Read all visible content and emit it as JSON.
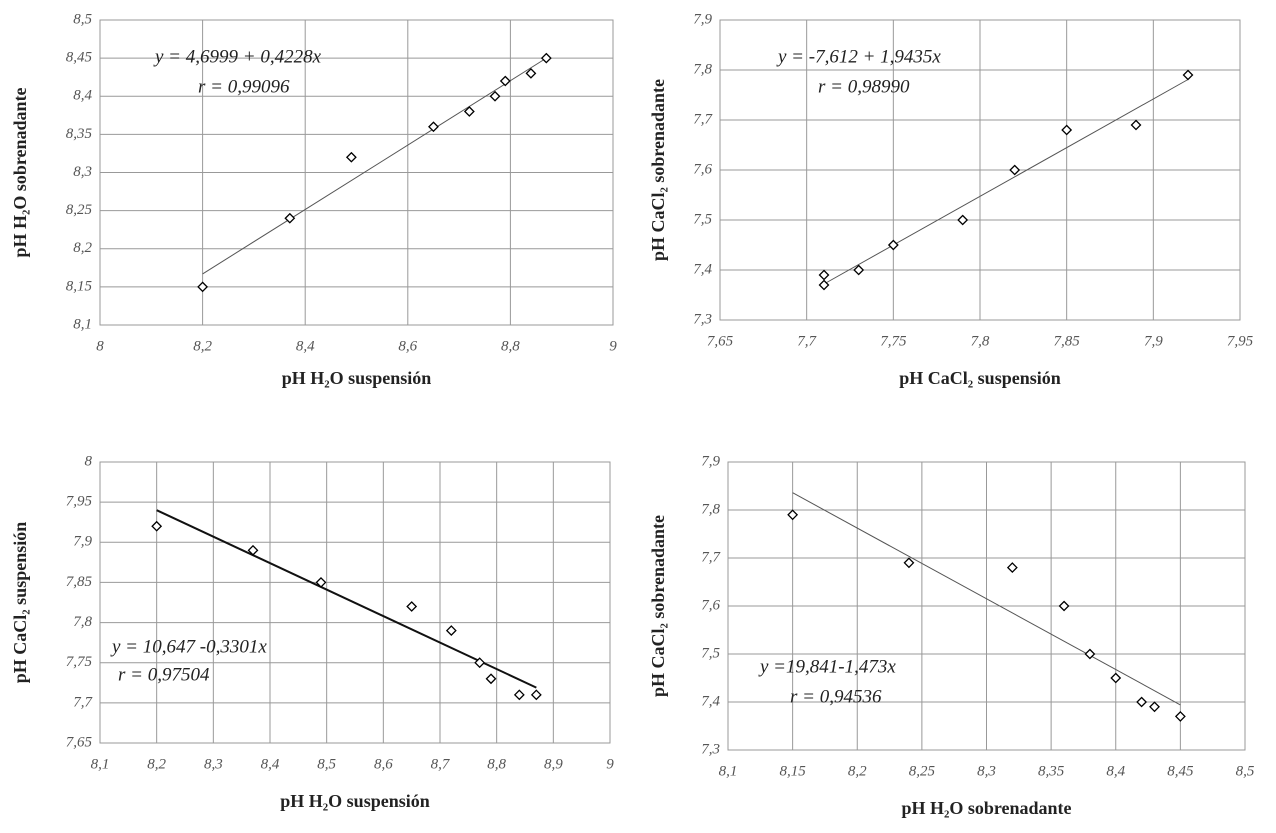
{
  "chart_data": [
    {
      "type": "scatter",
      "x_label": "pH H₂O suspensión",
      "y_label": "pH H₂O sobrenadante",
      "annotations": [
        "y = 4,6999 + 0,4228x",
        "r = 0,99096"
      ],
      "x": [
        8.2,
        8.37,
        8.49,
        8.65,
        8.72,
        8.77,
        8.79,
        8.84,
        8.87
      ],
      "values": [
        8.15,
        8.24,
        8.32,
        8.36,
        8.38,
        8.4,
        8.42,
        8.43,
        8.45
      ],
      "color": "#000000",
      "trendline": {
        "x": [
          8.2,
          8.87
        ],
        "y": [
          8.167,
          8.45
        ],
        "color": "#555555"
      },
      "xlim": [
        8,
        9
      ],
      "xticks": [
        8,
        {
          "value": 8.2,
          "label": "8,2"
        },
        {
          "value": 8.4,
          "label": "8,4"
        },
        {
          "value": 8.6,
          "label": "8,6"
        },
        {
          "value": 8.8,
          "label": "8,8"
        },
        9
      ],
      "ylim": [
        8.1,
        8.5
      ],
      "yticks": [
        {
          "value": 8.1,
          "label": "8,1"
        },
        {
          "value": 8.15,
          "label": "8,15"
        },
        {
          "value": 8.2,
          "label": "8,2"
        },
        {
          "value": 8.25,
          "label": "8,25"
        },
        {
          "value": 8.3,
          "label": "8,3"
        },
        {
          "value": 8.35,
          "label": "8,35"
        },
        {
          "value": 8.4,
          "label": "8,4"
        },
        {
          "value": 8.45,
          "label": "8,45"
        },
        {
          "value": 8.5,
          "label": "8,5"
        }
      ],
      "grid": true
    },
    {
      "type": "scatter",
      "x_label": "pH CaCl₂ suspensión",
      "y_label": "pH CaCl₂ sobrenadante",
      "annotations": [
        "y = -7,612 + 1,9435x",
        "r = 0,98990"
      ],
      "x": [
        7.71,
        7.71,
        7.73,
        7.75,
        7.79,
        7.82,
        7.85,
        7.89,
        7.92
      ],
      "values": [
        7.39,
        7.37,
        7.4,
        7.45,
        7.5,
        7.6,
        7.68,
        7.69,
        7.79
      ],
      "color": "#000000",
      "trendline": {
        "x": [
          7.71,
          7.92
        ],
        "y": [
          7.372,
          7.781
        ],
        "color": "#555555"
      },
      "xlim": [
        7.65,
        7.95
      ],
      "xticks": [
        {
          "value": 7.65,
          "label": "7,65"
        },
        {
          "value": 7.7,
          "label": "7,7"
        },
        {
          "value": 7.75,
          "label": "7,75"
        },
        {
          "value": 7.8,
          "label": "7,8"
        },
        {
          "value": 7.85,
          "label": "7,85"
        },
        {
          "value": 7.9,
          "label": "7,9"
        },
        {
          "value": 7.95,
          "label": "7,95"
        }
      ],
      "ylim": [
        7.3,
        7.9
      ],
      "yticks": [
        {
          "value": 7.3,
          "label": "7,3"
        },
        {
          "value": 7.4,
          "label": "7,4"
        },
        {
          "value": 7.5,
          "label": "7,5"
        },
        {
          "value": 7.6,
          "label": "7,6"
        },
        {
          "value": 7.7,
          "label": "7,7"
        },
        {
          "value": 7.8,
          "label": "7,8"
        },
        {
          "value": 7.9,
          "label": "7,9"
        }
      ],
      "grid": true
    },
    {
      "type": "scatter",
      "x_label": "pH H₂O suspensión",
      "y_label": "pH CaCl₂ suspensión",
      "annotations": [
        "y = 10,647 -0,3301x",
        "r = 0,97504"
      ],
      "x": [
        8.2,
        8.37,
        8.49,
        8.65,
        8.72,
        8.77,
        8.79,
        8.84,
        8.87
      ],
      "values": [
        7.92,
        7.89,
        7.85,
        7.82,
        7.79,
        7.75,
        7.73,
        7.71,
        7.71
      ],
      "color": "#000000",
      "trendline": {
        "x": [
          8.2,
          8.87
        ],
        "y": [
          7.94,
          7.719
        ],
        "color": "#111111"
      },
      "xlim": [
        8.1,
        9
      ],
      "xticks": [
        {
          "value": 8.1,
          "label": "8,1"
        },
        {
          "value": 8.2,
          "label": "8,2"
        },
        {
          "value": 8.3,
          "label": "8,3"
        },
        {
          "value": 8.4,
          "label": "8,4"
        },
        {
          "value": 8.5,
          "label": "8,5"
        },
        {
          "value": 8.6,
          "label": "8,6"
        },
        {
          "value": 8.7,
          "label": "8,7"
        },
        {
          "value": 8.8,
          "label": "8,8"
        },
        {
          "value": 8.9,
          "label": "8,9"
        },
        9
      ],
      "ylim": [
        7.65,
        8
      ],
      "yticks": [
        {
          "value": 7.65,
          "label": "7,65"
        },
        {
          "value": 7.7,
          "label": "7,7"
        },
        {
          "value": 7.75,
          "label": "7,75"
        },
        {
          "value": 7.8,
          "label": "7,8"
        },
        {
          "value": 7.85,
          "label": "7,85"
        },
        {
          "value": 7.9,
          "label": "7,9"
        },
        {
          "value": 7.95,
          "label": "7,95"
        },
        8
      ],
      "grid": true
    },
    {
      "type": "scatter",
      "x_label": "pH H₂O sobrenadante",
      "y_label": "pH CaCl₂ sobrenadante",
      "annotations": [
        "y =19,841-1,473x",
        "r = 0,94536"
      ],
      "x": [
        8.15,
        8.24,
        8.32,
        8.36,
        8.38,
        8.4,
        8.42,
        8.43,
        8.45
      ],
      "values": [
        7.79,
        7.69,
        7.68,
        7.6,
        7.5,
        7.45,
        7.4,
        7.39,
        7.37
      ],
      "color": "#000000",
      "trendline": {
        "x": [
          8.15,
          8.45
        ],
        "y": [
          7.836,
          7.394
        ],
        "color": "#555555"
      },
      "xlim": [
        8.1,
        8.5
      ],
      "xticks": [
        {
          "value": 8.1,
          "label": "8,1"
        },
        {
          "value": 8.15,
          "label": "8,15"
        },
        {
          "value": 8.2,
          "label": "8,2"
        },
        {
          "value": 8.25,
          "label": "8,25"
        },
        {
          "value": 8.3,
          "label": "8,3"
        },
        {
          "value": 8.35,
          "label": "8,35"
        },
        {
          "value": 8.4,
          "label": "8,4"
        },
        {
          "value": 8.45,
          "label": "8,45"
        },
        {
          "value": 8.5,
          "label": "8,5"
        }
      ],
      "ylim": [
        7.3,
        7.9
      ],
      "yticks": [
        {
          "value": 7.3,
          "label": "7,3"
        },
        {
          "value": 7.4,
          "label": "7,4"
        },
        {
          "value": 7.5,
          "label": "7,5"
        },
        {
          "value": 7.6,
          "label": "7,6"
        },
        {
          "value": 7.7,
          "label": "7,7"
        },
        {
          "value": 7.8,
          "label": "7,8"
        },
        {
          "value": 7.9,
          "label": "7,9"
        }
      ],
      "grid": true
    }
  ]
}
